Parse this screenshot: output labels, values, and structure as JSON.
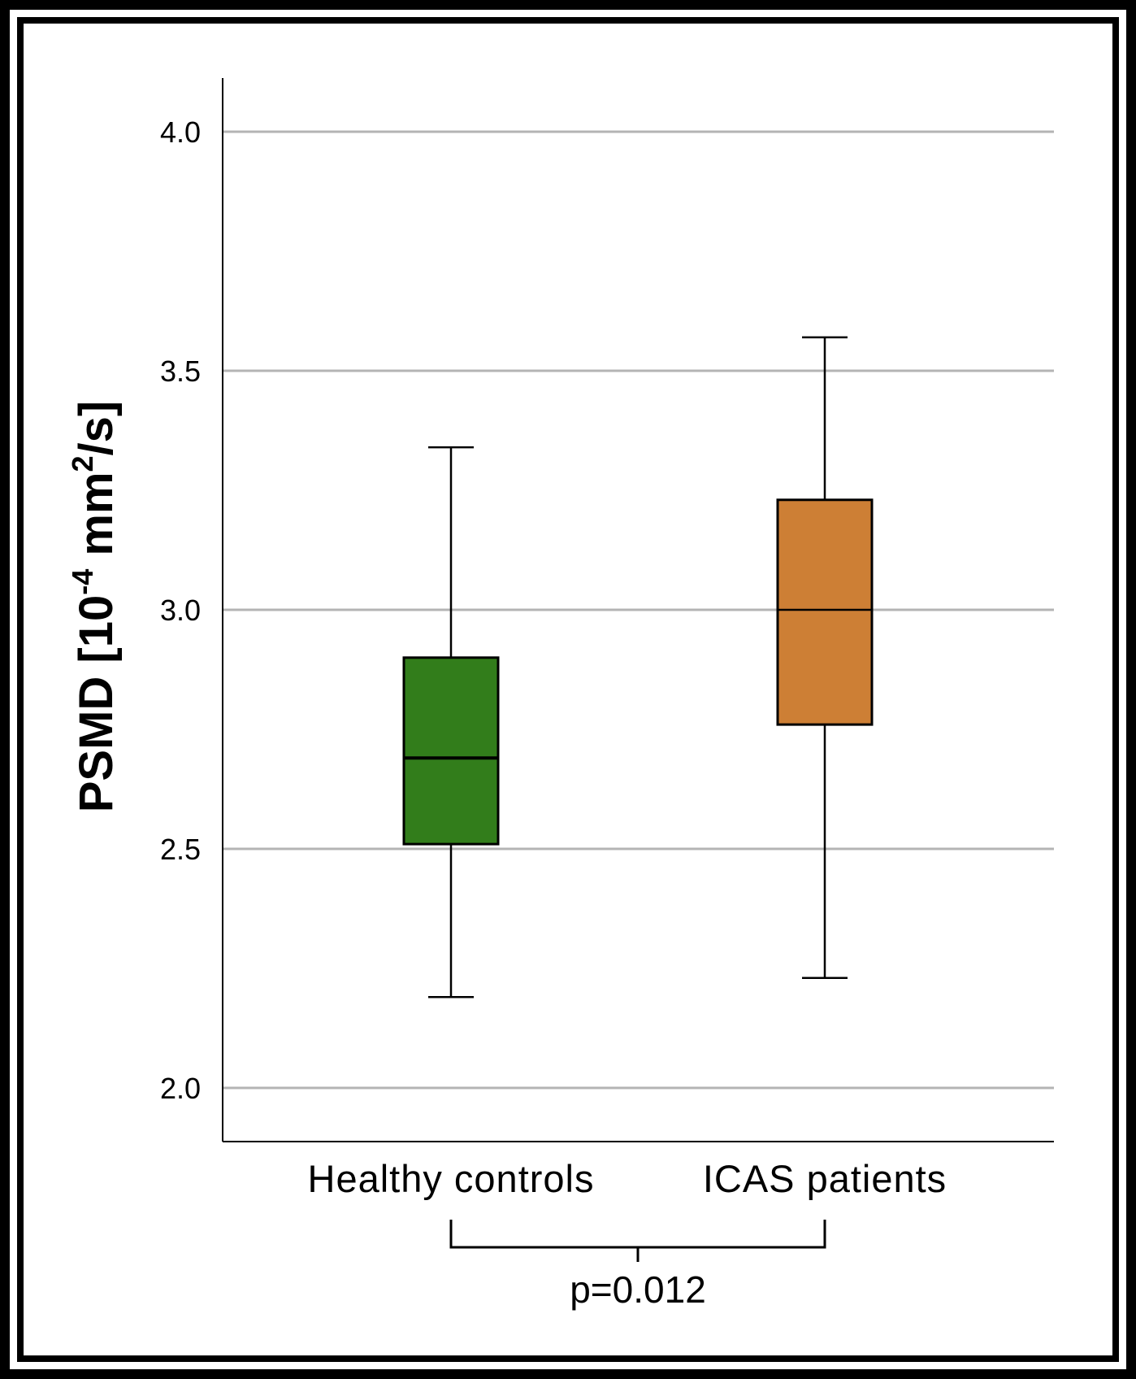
{
  "chart_data": {
    "type": "boxplot",
    "title": "",
    "xlabel": "",
    "ylabel": {
      "text": "PSMD [10",
      "exponent": "-4",
      "unit_main": " mm",
      "unit_sup": "2",
      "unit_tail": "/s]",
      "full": "PSMD [10-4 mm2/s]"
    },
    "ylim": [
      1.89,
      4.11
    ],
    "yticks": [
      2.0,
      2.5,
      3.0,
      3.5,
      4.0
    ],
    "ytick_labels": [
      "2.0",
      "2.5",
      "3.0",
      "3.5",
      "4.0"
    ],
    "grid": true,
    "categories": [
      "Healthy controls",
      "ICAS patients"
    ],
    "series": [
      {
        "name": "Healthy controls",
        "color": "#327D1B",
        "whisker_low": 2.19,
        "q1": 2.51,
        "median": 2.69,
        "q3": 2.9,
        "whisker_high": 3.34
      },
      {
        "name": "ICAS patients",
        "color": "#CD7F35",
        "whisker_low": 2.23,
        "q1": 2.76,
        "median": 3.0,
        "q3": 3.23,
        "whisker_high": 3.57
      }
    ],
    "annotation": {
      "text": "p=0.012",
      "between": [
        "Healthy controls",
        "ICAS patients"
      ]
    }
  },
  "colors": {
    "grid": "#B4B4B4",
    "axis": "#000000",
    "frame": "#000000"
  }
}
